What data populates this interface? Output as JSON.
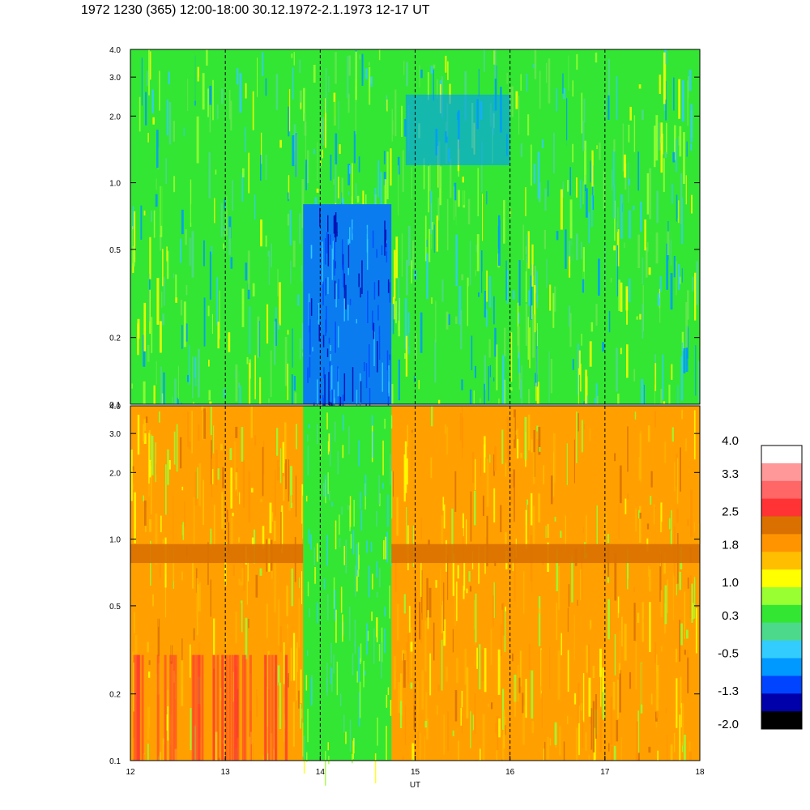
{
  "title": "1972 1230 (365) 12:00-18:00 30.12.1972-2.1.1973  12-17 UT",
  "chart_data": [
    {
      "type": "heatmap",
      "panel": "upper",
      "x_range": [
        12,
        18
      ],
      "y_range": [
        0.1,
        4.0
      ],
      "y_scale": "log",
      "y_ticks": [
        0.1,
        0.2,
        0.5,
        1.0,
        2.0,
        3.0,
        4.0
      ],
      "y_tick_labels": [
        "0.1",
        "0.2",
        "0.5",
        "1.0",
        "2.0",
        "3.0",
        "4.0"
      ],
      "hour_markers": [
        13,
        14,
        15,
        16,
        17
      ]
    },
    {
      "type": "heatmap",
      "panel": "lower",
      "x_range": [
        12,
        18
      ],
      "y_range": [
        0.1,
        4.0
      ],
      "y_scale": "log",
      "y_ticks": [
        0.1,
        0.2,
        0.5,
        1.0,
        2.0,
        3.0,
        4.0
      ],
      "y_tick_labels": [
        "0.1",
        "0.2",
        "0.5",
        "1.0",
        "2.0",
        "3.0",
        "4.0"
      ],
      "x_ticks": [
        12,
        13,
        14,
        15,
        16,
        17,
        18
      ],
      "x_tick_labels": [
        "12",
        "13",
        "14",
        "15",
        "16",
        "17",
        "18"
      ],
      "xlabel": "UT",
      "hour_markers": [
        13,
        14,
        15,
        16,
        17
      ]
    }
  ],
  "colorbar": {
    "range": [
      -2.0,
      4.0
    ],
    "labels": [
      "4.0",
      "3.3",
      "2.5",
      "1.8",
      "1.0",
      "0.3",
      "-0.5",
      "-1.3",
      "-2.0"
    ],
    "label_values": [
      4.0,
      3.3,
      2.5,
      1.8,
      1.0,
      0.3,
      -0.5,
      -1.3,
      -2.0
    ],
    "colors_top_to_bottom": [
      "#ffffff",
      "#ff9999",
      "#ff6666",
      "#ff3333",
      "#d97000",
      "#ff9400",
      "#ffbf00",
      "#ffff00",
      "#99ff33",
      "#33e633",
      "#4dd98c",
      "#33ccff",
      "#0099ff",
      "#0044ff",
      "#0000aa",
      "#000000"
    ]
  },
  "field_colors": {
    "upper_base": "#33e633",
    "upper_gap": "#0a7cf0",
    "lower_base": "#ffa000",
    "lower_gap": "#33e633",
    "lower_band": "#d97000"
  }
}
